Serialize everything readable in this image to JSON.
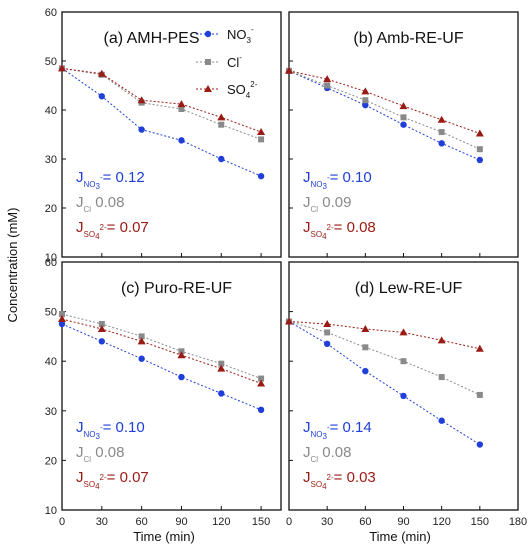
{
  "chart_data": {
    "type": "scatter",
    "ylabel": "Concentration (mM)",
    "xlabel": "Time (min)",
    "legend": {
      "placement": "top-right of panel (a)",
      "entries": [
        {
          "name": "NO",
          "sub": "3",
          "sup": "-",
          "color": "#1f3fd8",
          "marker": "circle"
        },
        {
          "name": "Cl",
          "sub": "",
          "sup": "-",
          "color": "#8a8a8a",
          "marker": "square"
        },
        {
          "name": "SO",
          "sub": "4",
          "sup": "2-",
          "color": "#9a1a14",
          "marker": "triangle"
        }
      ]
    },
    "colors": {
      "no3": "#1f3fd8",
      "cl": "#8a8a8a",
      "so4": "#9a1a14"
    },
    "x_ticks_left": [
      "0",
      "30",
      "60",
      "90",
      "120",
      "150"
    ],
    "x_ticks_right": [
      "0",
      "30",
      "60",
      "90",
      "120",
      "150",
      "180"
    ],
    "y_ticks": [
      "10",
      "20",
      "30",
      "40",
      "50",
      "60"
    ],
    "xlim_left": [
      0,
      165
    ],
    "xlim_right": [
      0,
      180
    ],
    "ylim": [
      10,
      60
    ],
    "grid": false,
    "panels": [
      {
        "title": "(a) AMH-PES",
        "x": [
          0,
          30,
          60,
          90,
          120,
          150
        ],
        "series": [
          {
            "key": "no3",
            "values": [
              48.5,
              42.8,
              36.0,
              33.8,
              30.0,
              26.5
            ]
          },
          {
            "key": "cl",
            "values": [
              48.5,
              47.2,
              41.5,
              40.2,
              37.0,
              34.0
            ]
          },
          {
            "key": "so4",
            "values": [
              48.5,
              47.4,
              42.0,
              41.2,
              38.5,
              35.5
            ]
          }
        ],
        "flux": [
          {
            "key": "no3",
            "sub": "NO3-",
            "value": "= 0.12"
          },
          {
            "key": "cl",
            "sub": "Cl",
            "value": " 0.08"
          },
          {
            "key": "so4",
            "sub": "SO42-",
            "value": "= 0.07"
          }
        ]
      },
      {
        "title": "(b) Amb-RE-UF",
        "x": [
          0,
          30,
          60,
          90,
          120,
          150
        ],
        "series": [
          {
            "key": "no3",
            "values": [
              48.0,
              44.5,
              41.0,
              37.0,
              33.2,
              29.8
            ]
          },
          {
            "key": "cl",
            "values": [
              48.0,
              45.0,
              42.0,
              38.5,
              35.5,
              32.0
            ]
          },
          {
            "key": "so4",
            "values": [
              48.0,
              46.3,
              43.8,
              40.8,
              38.0,
              35.2
            ]
          }
        ],
        "flux": [
          {
            "key": "no3",
            "sub": "NO3-",
            "value": "= 0.10"
          },
          {
            "key": "cl",
            "sub": "Cl",
            "value": " 0.09"
          },
          {
            "key": "so4",
            "sub": "SO42-",
            "value": "= 0.08"
          }
        ]
      },
      {
        "title": "(c) Puro-RE-UF",
        "x": [
          0,
          30,
          60,
          90,
          120,
          150
        ],
        "series": [
          {
            "key": "no3",
            "values": [
              47.5,
              44.0,
              40.5,
              36.8,
              33.5,
              30.2
            ]
          },
          {
            "key": "cl",
            "values": [
              49.5,
              47.5,
              45.0,
              42.0,
              39.5,
              36.5
            ]
          },
          {
            "key": "so4",
            "values": [
              48.5,
              46.5,
              44.0,
              41.2,
              38.5,
              35.5
            ]
          }
        ],
        "flux": [
          {
            "key": "no3",
            "sub": "NO3-",
            "value": "= 0.10"
          },
          {
            "key": "cl",
            "sub": "Cl",
            "value": " 0.08"
          },
          {
            "key": "so4",
            "sub": "SO42-",
            "value": "= 0.07"
          }
        ]
      },
      {
        "title": "(d) Lew-RE-UF",
        "x": [
          0,
          30,
          60,
          90,
          120,
          150
        ],
        "series": [
          {
            "key": "no3",
            "values": [
              48.0,
              43.5,
              38.0,
              33.0,
              28.0,
              23.2
            ]
          },
          {
            "key": "cl",
            "values": [
              48.0,
              45.8,
              42.8,
              40.0,
              36.8,
              33.2
            ]
          },
          {
            "key": "so4",
            "values": [
              48.0,
              47.5,
              46.5,
              45.8,
              44.2,
              42.5
            ]
          }
        ],
        "flux": [
          {
            "key": "no3",
            "sub": "NO3-",
            "value": "= 0.14"
          },
          {
            "key": "cl",
            "sub": "Cl",
            "value": " 0.08"
          },
          {
            "key": "so4",
            "sub": "SO42-",
            "value": "= 0.03"
          }
        ]
      }
    ]
  }
}
